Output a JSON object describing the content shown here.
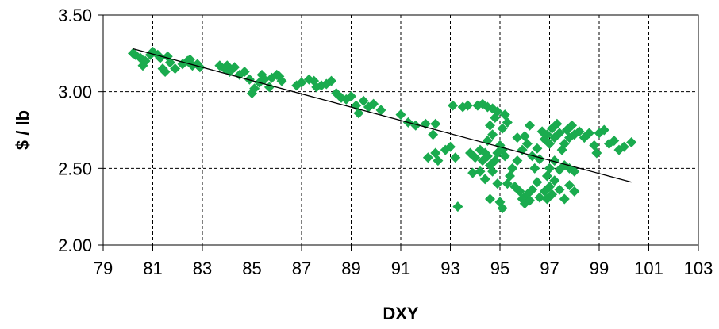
{
  "chart_data": {
    "type": "scatter",
    "xlabel": "DXY",
    "ylabel": "$ / lb",
    "xlim": [
      79,
      103
    ],
    "ylim": [
      2.0,
      3.5
    ],
    "xticks": [
      79,
      81,
      83,
      85,
      87,
      89,
      91,
      93,
      95,
      97,
      99,
      101,
      103
    ],
    "yticks": [
      2.0,
      2.5,
      3.0,
      3.5
    ],
    "ytick_labels": [
      "2.00",
      "2.50",
      "3.00",
      "3.50"
    ],
    "grid": true,
    "marker_color": "#1aab4e",
    "trendline": {
      "x": [
        80.2,
        100.3
      ],
      "y": [
        3.28,
        2.41
      ],
      "color": "#000000"
    },
    "points": [
      [
        80.2,
        3.25
      ],
      [
        80.3,
        3.24
      ],
      [
        80.5,
        3.22
      ],
      [
        80.6,
        3.17
      ],
      [
        80.7,
        3.2
      ],
      [
        80.9,
        3.24
      ],
      [
        81.0,
        3.26
      ],
      [
        81.2,
        3.24
      ],
      [
        81.3,
        3.22
      ],
      [
        81.4,
        3.15
      ],
      [
        81.5,
        3.13
      ],
      [
        81.6,
        3.23
      ],
      [
        81.7,
        3.19
      ],
      [
        81.9,
        3.15
      ],
      [
        82.2,
        3.18
      ],
      [
        82.4,
        3.2
      ],
      [
        82.5,
        3.21
      ],
      [
        82.6,
        3.17
      ],
      [
        82.8,
        3.18
      ],
      [
        82.9,
        3.16
      ],
      [
        83.7,
        3.17
      ],
      [
        83.9,
        3.15
      ],
      [
        84.0,
        3.17
      ],
      [
        84.1,
        3.13
      ],
      [
        84.3,
        3.16
      ],
      [
        84.5,
        3.11
      ],
      [
        84.7,
        3.13
      ],
      [
        84.9,
        3.08
      ],
      [
        85.0,
        2.99
      ],
      [
        85.1,
        3.02
      ],
      [
        85.3,
        3.06
      ],
      [
        85.4,
        3.11
      ],
      [
        85.5,
        3.08
      ],
      [
        85.7,
        3.03
      ],
      [
        85.8,
        3.09
      ],
      [
        86.0,
        3.11
      ],
      [
        86.1,
        3.1
      ],
      [
        86.2,
        3.07
      ],
      [
        86.8,
        3.04
      ],
      [
        87.0,
        3.06
      ],
      [
        87.3,
        3.08
      ],
      [
        87.5,
        3.07
      ],
      [
        87.6,
        3.03
      ],
      [
        87.8,
        3.04
      ],
      [
        88.0,
        3.05
      ],
      [
        88.2,
        3.07
      ],
      [
        88.4,
        2.99
      ],
      [
        88.6,
        2.96
      ],
      [
        88.8,
        2.95
      ],
      [
        89.0,
        2.97
      ],
      [
        89.2,
        2.91
      ],
      [
        89.3,
        2.86
      ],
      [
        89.5,
        2.94
      ],
      [
        89.7,
        2.9
      ],
      [
        89.9,
        2.92
      ],
      [
        90.2,
        2.88
      ],
      [
        91.0,
        2.85
      ],
      [
        91.3,
        2.8
      ],
      [
        91.6,
        2.78
      ],
      [
        92.0,
        2.79
      ],
      [
        92.3,
        2.72
      ],
      [
        92.4,
        2.79
      ],
      [
        92.1,
        2.57
      ],
      [
        92.4,
        2.6
      ],
      [
        92.5,
        2.55
      ],
      [
        92.8,
        2.62
      ],
      [
        93.0,
        2.64
      ],
      [
        93.2,
        2.57
      ],
      [
        93.1,
        2.91
      ],
      [
        93.5,
        2.9
      ],
      [
        93.7,
        2.91
      ],
      [
        93.3,
        2.25
      ],
      [
        94.1,
        2.91
      ],
      [
        94.3,
        2.92
      ],
      [
        94.5,
        2.9
      ],
      [
        94.7,
        2.89
      ],
      [
        94.9,
        2.87
      ],
      [
        95.2,
        2.85
      ],
      [
        95.3,
        2.8
      ],
      [
        95.1,
        2.76
      ],
      [
        93.8,
        2.6
      ],
      [
        94.0,
        2.57
      ],
      [
        94.2,
        2.62
      ],
      [
        94.3,
        2.55
      ],
      [
        94.4,
        2.6
      ],
      [
        94.5,
        2.58
      ],
      [
        94.6,
        2.52
      ],
      [
        94.7,
        2.48
      ],
      [
        94.8,
        2.55
      ],
      [
        94.9,
        2.6
      ],
      [
        95.0,
        2.65
      ],
      [
        95.1,
        2.62
      ],
      [
        94.5,
        2.68
      ],
      [
        94.7,
        2.72
      ],
      [
        94.6,
        2.78
      ],
      [
        94.8,
        2.83
      ],
      [
        94.2,
        2.48
      ],
      [
        94.4,
        2.43
      ],
      [
        94.6,
        2.3
      ],
      [
        94.9,
        2.4
      ],
      [
        95.0,
        2.28
      ],
      [
        95.1,
        2.24
      ],
      [
        95.4,
        2.45
      ],
      [
        95.6,
        2.38
      ],
      [
        95.8,
        2.35
      ],
      [
        95.9,
        2.3
      ],
      [
        96.0,
        2.27
      ],
      [
        96.1,
        2.33
      ],
      [
        96.2,
        2.29
      ],
      [
        96.3,
        2.36
      ],
      [
        96.5,
        2.41
      ],
      [
        96.6,
        2.31
      ],
      [
        96.8,
        2.35
      ],
      [
        96.9,
        2.3
      ],
      [
        97.0,
        2.38
      ],
      [
        97.1,
        2.33
      ],
      [
        97.2,
        2.42
      ],
      [
        97.4,
        2.36
      ],
      [
        97.6,
        2.3
      ],
      [
        97.8,
        2.39
      ],
      [
        98.0,
        2.35
      ],
      [
        95.7,
        2.55
      ],
      [
        95.9,
        2.62
      ],
      [
        96.0,
        2.71
      ],
      [
        96.1,
        2.66
      ],
      [
        96.2,
        2.78
      ],
      [
        96.3,
        2.58
      ],
      [
        96.5,
        2.63
      ],
      [
        96.7,
        2.74
      ],
      [
        96.8,
        2.69
      ],
      [
        96.9,
        2.72
      ],
      [
        97.0,
        2.66
      ],
      [
        97.1,
        2.76
      ],
      [
        97.2,
        2.7
      ],
      [
        97.3,
        2.79
      ],
      [
        97.4,
        2.73
      ],
      [
        97.5,
        2.62
      ],
      [
        97.6,
        2.66
      ],
      [
        97.7,
        2.75
      ],
      [
        97.8,
        2.7
      ],
      [
        97.9,
        2.78
      ],
      [
        98.0,
        2.72
      ],
      [
        98.2,
        2.74
      ],
      [
        98.4,
        2.7
      ],
      [
        98.6,
        2.73
      ],
      [
        98.8,
        2.65
      ],
      [
        98.9,
        2.6
      ],
      [
        97.2,
        2.55
      ],
      [
        97.4,
        2.49
      ],
      [
        97.6,
        2.52
      ],
      [
        97.8,
        2.5
      ],
      [
        98.0,
        2.48
      ],
      [
        96.9,
        2.45
      ],
      [
        97.0,
        2.5
      ],
      [
        99.0,
        2.73
      ],
      [
        99.2,
        2.75
      ],
      [
        99.4,
        2.66
      ],
      [
        99.6,
        2.68
      ],
      [
        99.8,
        2.62
      ],
      [
        100.0,
        2.64
      ],
      [
        100.3,
        2.67
      ],
      [
        95.5,
        2.5
      ],
      [
        95.3,
        2.4
      ],
      [
        96.4,
        2.5
      ],
      [
        95.7,
        2.7
      ],
      [
        96.6,
        2.56
      ],
      [
        95.2,
        2.58
      ],
      [
        93.9,
        2.47
      ]
    ]
  }
}
